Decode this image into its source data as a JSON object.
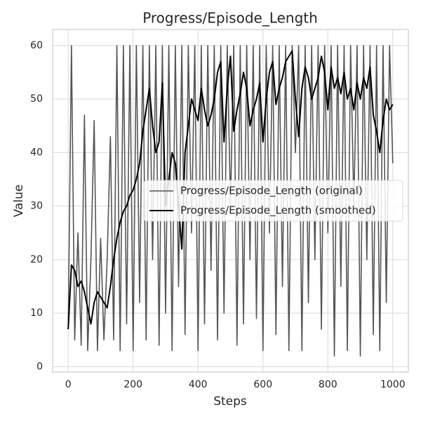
{
  "chart_data": {
    "type": "line",
    "title": "Progress/Episode_Length",
    "xlabel": "Steps",
    "ylabel": "Value",
    "x": [
      0,
      10,
      20,
      30,
      40,
      50,
      60,
      70,
      80,
      90,
      100,
      110,
      120,
      130,
      140,
      150,
      160,
      170,
      180,
      190,
      200,
      210,
      220,
      230,
      240,
      250,
      260,
      270,
      280,
      290,
      300,
      310,
      320,
      330,
      340,
      350,
      360,
      370,
      380,
      390,
      400,
      410,
      420,
      430,
      440,
      450,
      460,
      470,
      480,
      490,
      500,
      510,
      520,
      530,
      540,
      550,
      560,
      570,
      580,
      590,
      600,
      610,
      620,
      630,
      640,
      650,
      660,
      670,
      680,
      690,
      700,
      710,
      720,
      730,
      740,
      750,
      760,
      770,
      780,
      790,
      800,
      810,
      820,
      830,
      840,
      850,
      860,
      870,
      880,
      890,
      900,
      910,
      920,
      930,
      940,
      950,
      960,
      970,
      980,
      990,
      1000
    ],
    "series": [
      {
        "name": "Progress/Episode_Length (original)",
        "color": "#555555",
        "width": 1.6,
        "values": [
          7,
          60,
          5,
          25,
          4,
          47,
          3,
          20,
          46,
          3,
          24,
          5,
          20,
          43,
          5,
          60,
          3,
          60,
          8,
          60,
          3,
          60,
          12,
          60,
          5,
          60,
          20,
          60,
          4,
          60,
          10,
          60,
          3,
          60,
          15,
          60,
          6,
          60,
          25,
          60,
          3,
          60,
          8,
          60,
          18,
          60,
          5,
          60,
          10,
          60,
          30,
          60,
          4,
          60,
          8,
          60,
          20,
          60,
          9,
          60,
          3,
          60,
          25,
          60,
          6,
          60,
          15,
          60,
          3,
          60,
          40,
          60,
          3,
          60,
          12,
          60,
          20,
          60,
          7,
          60,
          25,
          60,
          2,
          60,
          15,
          60,
          3,
          60,
          30,
          60,
          2,
          60,
          20,
          60,
          6,
          60,
          3,
          60,
          12,
          60,
          38
        ]
      },
      {
        "name": "Progress/Episode_Length (smoothed)",
        "color": "#000000",
        "width": 2,
        "values": [
          7,
          19,
          18,
          15,
          16,
          14,
          11,
          8,
          12,
          14,
          13,
          12,
          11,
          15,
          20,
          24,
          27,
          29,
          30,
          32,
          33,
          35,
          38,
          44,
          48,
          52,
          45,
          40,
          42,
          53,
          30,
          35,
          40,
          38,
          30,
          22,
          40,
          45,
          50,
          48,
          46,
          52,
          48,
          45,
          47,
          50,
          55,
          57,
          42,
          52,
          58,
          44,
          48,
          51,
          55,
          52,
          45,
          48,
          50,
          53,
          42,
          50,
          55,
          57,
          49,
          52,
          54,
          57,
          58,
          59,
          50,
          43,
          52,
          56,
          54,
          50,
          52,
          54,
          58,
          55,
          48,
          56,
          52,
          54,
          51,
          55,
          50,
          52,
          48,
          53,
          50,
          54,
          52,
          56,
          47,
          44,
          40,
          46,
          50,
          48,
          49
        ]
      }
    ],
    "xlim": [
      -48,
      1048
    ],
    "ylim": [
      -1,
      63
    ],
    "xticks": [
      0,
      200,
      400,
      600,
      800,
      1000
    ],
    "yticks": [
      0,
      10,
      20,
      30,
      40,
      50,
      60
    ],
    "grid": true,
    "legend": "center right"
  }
}
